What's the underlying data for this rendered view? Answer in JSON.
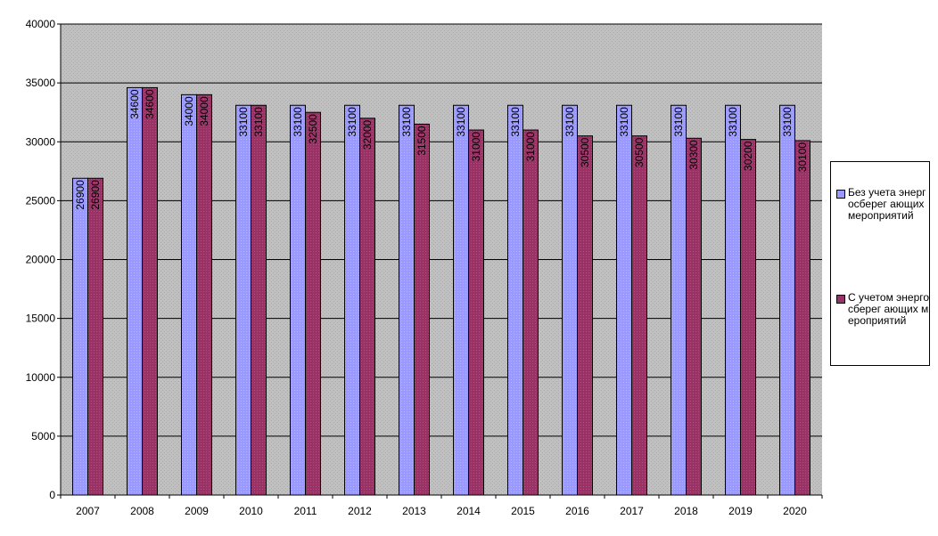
{
  "chart_data": {
    "type": "bar",
    "categories": [
      "2007",
      "2008",
      "2009",
      "2010",
      "2011",
      "2012",
      "2013",
      "2014",
      "2015",
      "2016",
      "2017",
      "2018",
      "2019",
      "2020"
    ],
    "series": [
      {
        "name": "Без учета энергосберегающих мероприятий",
        "values": [
          26900,
          34600,
          34000,
          33100,
          33100,
          33100,
          33100,
          33100,
          33100,
          33100,
          33100,
          33100,
          33100,
          33100
        ],
        "data_labels": [
          "26900",
          "34600",
          "34000",
          "33100",
          "33100",
          "33100",
          "33100",
          "33100",
          "33100",
          "33100",
          "33100",
          "33100",
          "33100",
          "33100"
        ],
        "color": "#9999ff"
      },
      {
        "name": "С учетом энергосберегающих мероприятий",
        "values": [
          26900,
          34600,
          34000,
          33100,
          32500,
          32000,
          31500,
          31000,
          31000,
          30500,
          30500,
          30300,
          30200,
          30100
        ],
        "data_labels": [
          "26900",
          "34600",
          "34000",
          "33100",
          "32500",
          "32000",
          "31500",
          "31000",
          "31000",
          "30500",
          "30500",
          "30300",
          "30200",
          "30100"
        ],
        "color": "#993366"
      }
    ],
    "y_ticks": [
      "0",
      "5000",
      "10000",
      "15000",
      "20000",
      "25000",
      "30000",
      "35000",
      "40000"
    ],
    "ylim": [
      0,
      40000
    ],
    "grid": true,
    "plot_background": "#c0c0c0",
    "legend_position": "right",
    "title": "",
    "xlabel": "",
    "ylabel": ""
  },
  "legend": {
    "items": [
      {
        "label": "Без учета энергосберег ающих мероприятий",
        "color": "#9999ff"
      },
      {
        "label": "С учетом энергосберег ающих мероприятий",
        "color": "#993366"
      }
    ]
  }
}
